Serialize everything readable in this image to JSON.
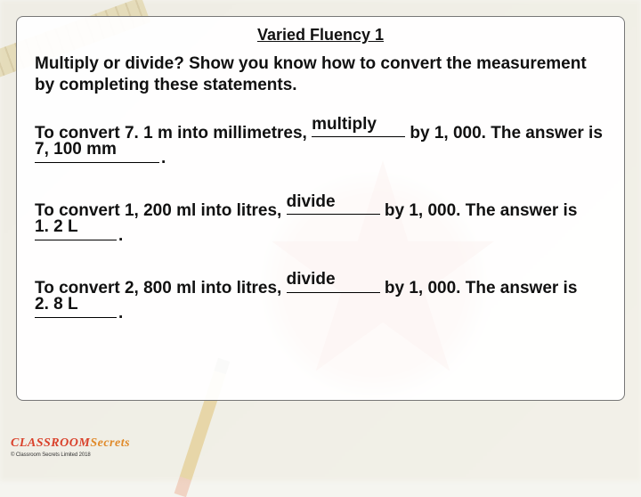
{
  "colors": {
    "card_bg": "#ffffffef",
    "card_border": "#777777",
    "text": "#111111",
    "star_bg": "#c83a1f",
    "logo_red": "#d9412b",
    "logo_orange": "#e08a2a"
  },
  "title": "Varied Fluency 1",
  "instruction": "Multiply or divide? Show you know how to convert the measurement by completing these statements.",
  "statements": [
    {
      "pre": "To convert 7. 1 m into millimetres, ",
      "op_fill": "multiply",
      "mid": " by 1, 000.  The answer is ",
      "ans_fill": "7, 100 mm",
      "post": "."
    },
    {
      "pre": "To convert 1, 200 ml into litres, ",
      "op_fill": "divide",
      "mid": " by 1, 000. The answer is ",
      "ans_fill": "1. 2 L",
      "post": "."
    },
    {
      "pre": "To convert 2, 800 ml into litres, ",
      "op_fill": "divide",
      "mid": " by 1, 000. The answer is ",
      "ans_fill": "2. 8 L",
      "post": "."
    }
  ],
  "logo": {
    "word1": "CLASSROOM",
    "word2": "Secrets",
    "copyright": "© Classroom Secrets Limited 2018"
  }
}
